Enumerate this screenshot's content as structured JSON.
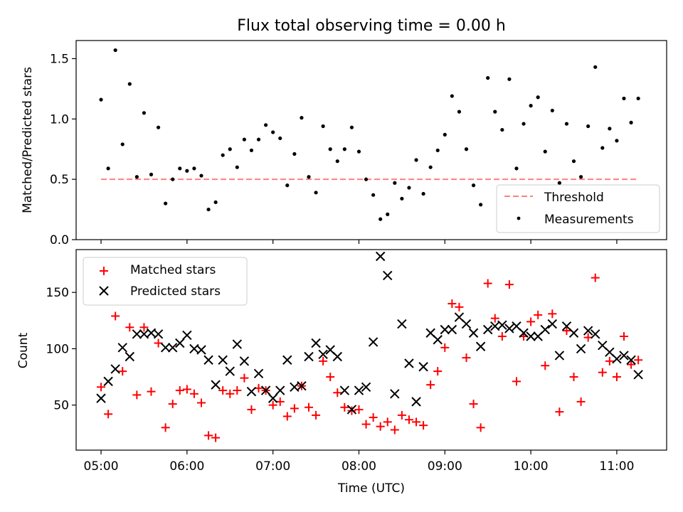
{
  "chart_data": [
    {
      "type": "scatter",
      "title": "Flux total observing time = 0.00 h",
      "xlabel": "",
      "ylabel": "Matched/Predicted stars",
      "ylim": [
        0,
        1.65
      ],
      "yticks": [
        0.0,
        0.5,
        1.0,
        1.5
      ],
      "ytick_labels": [
        "0.0",
        "0.5",
        "1.0",
        "1.5"
      ],
      "xlim": [
        4.71,
        11.58
      ],
      "xticks": [
        5,
        6,
        7,
        8,
        9,
        10,
        11
      ],
      "xtick_labels": [],
      "legend_position": "lower-right",
      "threshold": {
        "name": "Threshold",
        "color": "#ff8080",
        "y": 0.5,
        "x": [
          5.0,
          11.25
        ]
      },
      "series": [
        {
          "name": "Measurements",
          "color": "#000000",
          "marker": "dot",
          "x": [
            5.0,
            5.0833,
            5.1667,
            5.25,
            5.3333,
            5.4167,
            5.5,
            5.5833,
            5.6667,
            5.75,
            5.8333,
            5.9167,
            6.0,
            6.0833,
            6.1667,
            6.25,
            6.3333,
            6.4167,
            6.5,
            6.5833,
            6.6667,
            6.75,
            6.8333,
            6.9167,
            7.0,
            7.0833,
            7.1667,
            7.25,
            7.3333,
            7.4167,
            7.5,
            7.5833,
            7.6667,
            7.75,
            7.8333,
            7.9167,
            8.0,
            8.0833,
            8.1667,
            8.25,
            8.3333,
            8.4167,
            8.5,
            8.5833,
            8.6667,
            8.75,
            8.8333,
            8.9167,
            9.0,
            9.0833,
            9.1667,
            9.25,
            9.3333,
            9.4167,
            9.5,
            9.5833,
            9.6667,
            9.75,
            9.8333,
            9.9167,
            10.0,
            10.0833,
            10.1667,
            10.25,
            10.3333,
            10.4167,
            10.5,
            10.5833,
            10.6667,
            10.75,
            10.8333,
            10.9167,
            11.0,
            11.0833,
            11.1667,
            11.25
          ],
          "y": [
            1.16,
            0.59,
            1.57,
            0.79,
            1.29,
            0.52,
            1.05,
            0.54,
            0.93,
            0.3,
            0.5,
            0.59,
            0.57,
            0.59,
            0.53,
            0.25,
            0.31,
            0.7,
            0.75,
            0.6,
            0.83,
            0.74,
            0.83,
            0.95,
            0.89,
            0.84,
            0.45,
            0.71,
            1.01,
            0.52,
            0.39,
            0.94,
            0.75,
            0.65,
            0.75,
            0.93,
            0.73,
            0.5,
            0.37,
            0.17,
            0.21,
            0.47,
            0.34,
            0.43,
            0.66,
            0.38,
            0.6,
            0.74,
            0.87,
            1.19,
            1.06,
            0.75,
            0.45,
            0.29,
            1.34,
            1.06,
            0.91,
            1.33,
            0.59,
            0.96,
            1.11,
            1.18,
            0.73,
            1.07,
            0.47,
            0.96,
            0.65,
            0.52,
            0.94,
            1.43,
            0.76,
            0.92,
            0.82,
            1.17,
            0.97,
            1.17
          ]
        }
      ]
    },
    {
      "type": "scatter",
      "title": "",
      "xlabel": "Time (UTC)",
      "ylabel": "Count",
      "ylim": [
        10,
        188
      ],
      "yticks": [
        50,
        100,
        150
      ],
      "ytick_labels": [
        "50",
        "100",
        "150"
      ],
      "xlim": [
        4.71,
        11.58
      ],
      "xticks": [
        5,
        6,
        7,
        8,
        9,
        10,
        11
      ],
      "xtick_labels": [
        "05:00",
        "06:00",
        "07:00",
        "08:00",
        "09:00",
        "10:00",
        "11:00"
      ],
      "legend_position": "upper-left",
      "series": [
        {
          "name": "Matched stars",
          "color": "#ff0000",
          "marker": "plus",
          "x": [
            5.0,
            5.0833,
            5.1667,
            5.25,
            5.3333,
            5.4167,
            5.5,
            5.5833,
            5.6667,
            5.75,
            5.8333,
            5.9167,
            6.0,
            6.0833,
            6.1667,
            6.25,
            6.3333,
            6.4167,
            6.5,
            6.5833,
            6.6667,
            6.75,
            6.8333,
            6.9167,
            7.0,
            7.0833,
            7.1667,
            7.25,
            7.3333,
            7.4167,
            7.5,
            7.5833,
            7.6667,
            7.75,
            7.8333,
            7.9167,
            8.0,
            8.0833,
            8.1667,
            8.25,
            8.3333,
            8.4167,
            8.5,
            8.5833,
            8.6667,
            8.75,
            8.8333,
            8.9167,
            9.0,
            9.0833,
            9.1667,
            9.25,
            9.3333,
            9.4167,
            9.5,
            9.5833,
            9.6667,
            9.75,
            9.8333,
            9.9167,
            10.0,
            10.0833,
            10.1667,
            10.25,
            10.3333,
            10.4167,
            10.5,
            10.5833,
            10.6667,
            10.75,
            10.8333,
            10.9167,
            11.0,
            11.0833,
            11.1667,
            11.25
          ],
          "y": [
            66,
            42,
            129,
            80,
            119,
            59,
            119,
            62,
            105,
            30,
            51,
            63,
            64,
            60,
            52,
            23,
            21,
            63,
            60,
            63,
            74,
            46,
            65,
            63,
            50,
            53,
            40,
            47,
            67,
            48,
            41,
            89,
            75,
            61,
            48,
            45,
            46,
            33,
            39,
            31,
            35,
            28,
            41,
            37,
            35,
            32,
            68,
            80,
            101,
            140,
            137,
            92,
            51,
            30,
            158,
            127,
            111,
            157,
            71,
            111,
            124,
            130,
            85,
            131,
            44,
            116,
            75,
            53,
            110,
            163,
            79,
            89,
            75,
            111,
            86,
            90
          ]
        },
        {
          "name": "Predicted stars",
          "color": "#000000",
          "marker": "x",
          "x": [
            5.0,
            5.0833,
            5.1667,
            5.25,
            5.3333,
            5.4167,
            5.5,
            5.5833,
            5.6667,
            5.75,
            5.8333,
            5.9167,
            6.0,
            6.0833,
            6.1667,
            6.25,
            6.3333,
            6.4167,
            6.5,
            6.5833,
            6.6667,
            6.75,
            6.8333,
            6.9167,
            7.0,
            7.0833,
            7.1667,
            7.25,
            7.3333,
            7.4167,
            7.5,
            7.5833,
            7.6667,
            7.75,
            7.8333,
            7.9167,
            8.0,
            8.0833,
            8.1667,
            8.25,
            8.3333,
            8.4167,
            8.5,
            8.5833,
            8.6667,
            8.75,
            8.8333,
            8.9167,
            9.0,
            9.0833,
            9.1667,
            9.25,
            9.3333,
            9.4167,
            9.5,
            9.5833,
            9.6667,
            9.75,
            9.8333,
            9.9167,
            10.0,
            10.0833,
            10.1667,
            10.25,
            10.3333,
            10.4167,
            10.5,
            10.5833,
            10.6667,
            10.75,
            10.8333,
            10.9167,
            11.0,
            11.0833,
            11.1667,
            11.25
          ],
          "y": [
            56,
            71,
            82,
            101,
            93,
            113,
            113,
            114,
            113,
            101,
            101,
            105,
            112,
            100,
            99,
            90,
            68,
            90,
            80,
            104,
            89,
            62,
            78,
            63,
            56,
            63,
            90,
            66,
            67,
            93,
            105,
            95,
            99,
            93,
            63,
            46,
            63,
            66,
            106,
            182,
            165,
            60,
            122,
            87,
            53,
            84,
            114,
            108,
            117,
            117,
            128,
            122,
            114,
            102,
            117,
            120,
            121,
            118,
            120,
            114,
            111,
            111,
            117,
            122,
            94,
            120,
            114,
            100,
            116,
            113,
            103,
            97,
            91,
            94,
            90,
            77
          ]
        }
      ]
    }
  ]
}
